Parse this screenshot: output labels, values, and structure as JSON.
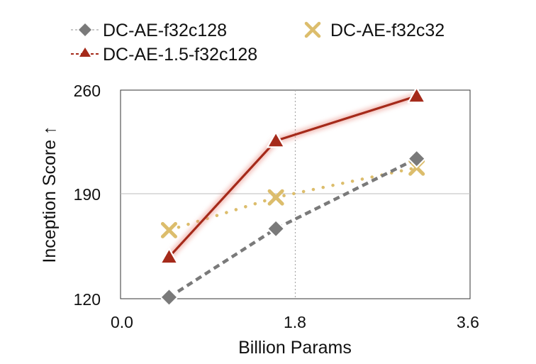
{
  "chart_data": {
    "type": "line",
    "xlabel": "Billion Params",
    "ylabel": "Inception Score ↑",
    "xlim": [
      0.0,
      3.6
    ],
    "ylim": [
      120,
      260
    ],
    "x_ticks": [
      "0.0",
      "1.8",
      "3.6"
    ],
    "y_ticks": [
      "120",
      "190",
      "260"
    ],
    "grid": {
      "vertical_dotted_at_x": 1.8,
      "horizontal_solid_at_y": 190
    },
    "legend_placement": "top",
    "series": [
      {
        "name": "DC-AE-f32c128",
        "marker": "diamond",
        "line_style": "dashed",
        "color": "#7a7a7a",
        "x": [
          0.5,
          1.6,
          3.05
        ],
        "y": [
          121,
          167,
          214
        ]
      },
      {
        "name": "DC-AE-f32c32",
        "marker": "x",
        "line_style": "dotted",
        "color": "#dcbd6c",
        "x": [
          0.5,
          1.6,
          3.05
        ],
        "y": [
          166,
          188,
          208
        ]
      },
      {
        "name": "DC-AE-1.5-f32c128",
        "marker": "triangle",
        "line_style": "solid",
        "color": "#a52a1a",
        "x": [
          0.5,
          1.6,
          3.05
        ],
        "y": [
          148,
          226,
          256
        ]
      }
    ]
  }
}
